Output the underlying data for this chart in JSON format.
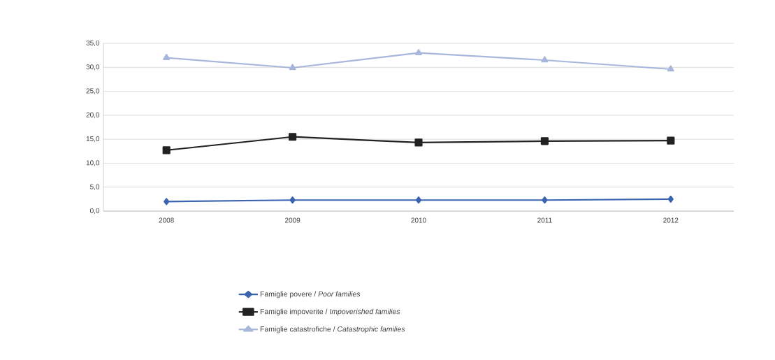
{
  "chart_data": {
    "type": "line",
    "categories": [
      "2008",
      "2009",
      "2010",
      "2011",
      "2012"
    ],
    "series": [
      {
        "name": "Famiglie povere / *Poor families*",
        "color": "#3a64b0",
        "marker": "diamond",
        "values": [
          2.0,
          2.3,
          2.3,
          2.3,
          2.5
        ]
      },
      {
        "name": "Famiglie impoverite / *Impoverished families*",
        "color": "#222222",
        "marker": "square",
        "values": [
          12.7,
          15.5,
          14.3,
          14.6,
          14.7
        ]
      },
      {
        "name": "Famiglie catastrofiche / *Catastrophic families*",
        "color": "#a9b6dc",
        "marker": "triangle",
        "values": [
          32.0,
          29.9,
          33.0,
          31.5,
          29.6
        ]
      }
    ],
    "ylim": [
      0,
      35
    ],
    "yticks": [
      {
        "value": 0,
        "label": "0,0"
      },
      {
        "value": 5,
        "label": "5,0"
      },
      {
        "value": 10,
        "label": "10,0"
      },
      {
        "value": 15,
        "label": "15,0"
      },
      {
        "value": 20,
        "label": "20,0"
      },
      {
        "value": 25,
        "label": "25,0"
      },
      {
        "value": 30,
        "label": "30,0"
      },
      {
        "value": 35,
        "label": "35,0"
      }
    ],
    "grid": "y",
    "legend": "bottom",
    "line_style": "solid"
  }
}
